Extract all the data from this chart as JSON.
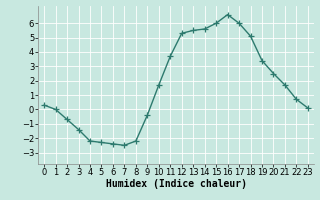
{
  "x": [
    0,
    1,
    2,
    3,
    4,
    5,
    6,
    7,
    8,
    9,
    10,
    11,
    12,
    13,
    14,
    15,
    16,
    17,
    18,
    19,
    20,
    21,
    22,
    23
  ],
  "y": [
    0.3,
    0.0,
    -0.7,
    -1.4,
    -2.2,
    -2.3,
    -2.4,
    -2.5,
    -2.2,
    -0.4,
    1.7,
    3.7,
    5.3,
    5.5,
    5.6,
    6.0,
    6.6,
    6.0,
    5.1,
    3.4,
    2.5,
    1.7,
    0.7,
    0.1
  ],
  "line_color": "#2d7a6e",
  "marker": "+",
  "bg_color": "#c8e8e0",
  "grid_color": "#ffffff",
  "xlabel": "Humidex (Indice chaleur)",
  "xlabel_fontsize": 7,
  "xlim": [
    -0.5,
    23.5
  ],
  "ylim": [
    -3.8,
    7.2
  ],
  "yticks": [
    -3,
    -2,
    -1,
    0,
    1,
    2,
    3,
    4,
    5,
    6
  ],
  "xticks": [
    0,
    1,
    2,
    3,
    4,
    5,
    6,
    7,
    8,
    9,
    10,
    11,
    12,
    13,
    14,
    15,
    16,
    17,
    18,
    19,
    20,
    21,
    22,
    23
  ],
  "tick_fontsize": 6,
  "line_width": 1.0,
  "marker_size": 4,
  "spine_color": "#888888"
}
